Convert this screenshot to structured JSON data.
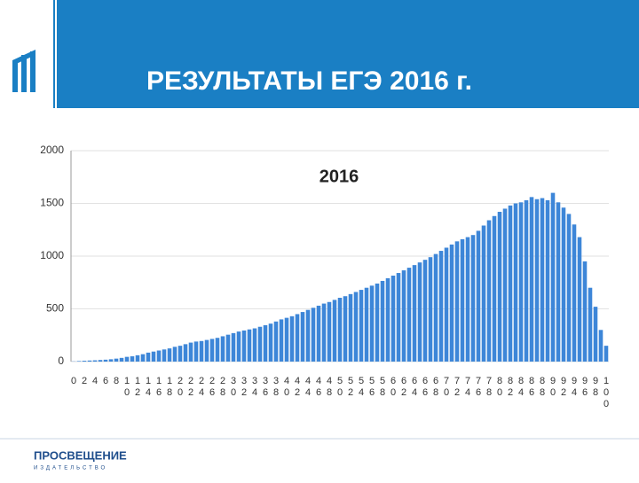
{
  "header": {
    "title": "РЕЗУЛЬТАТЫ ЕГЭ 2016 г."
  },
  "footer": {
    "brand": "ПРОСВЕЩЕНИЕ",
    "sub": "ИЗДАТЕЛЬСТВО"
  },
  "chart_data": {
    "type": "bar",
    "title": "2016",
    "categories": [
      0,
      null,
      2,
      null,
      4,
      null,
      6,
      null,
      8,
      null,
      10,
      null,
      12,
      null,
      14,
      null,
      16,
      null,
      18,
      null,
      20,
      null,
      22,
      null,
      24,
      null,
      26,
      null,
      28,
      null,
      30,
      null,
      32,
      null,
      34,
      null,
      36,
      null,
      38,
      null,
      40,
      null,
      42,
      null,
      44,
      null,
      46,
      null,
      48,
      null,
      50,
      null,
      52,
      null,
      54,
      null,
      56,
      null,
      58,
      null,
      60,
      null,
      62,
      null,
      64,
      null,
      66,
      null,
      68,
      null,
      70,
      null,
      72,
      null,
      74,
      null,
      76,
      null,
      78,
      null,
      80,
      null,
      82,
      null,
      84,
      null,
      86,
      null,
      88,
      null,
      90,
      null,
      92,
      null,
      94,
      null,
      96,
      null,
      98,
      null,
      100
    ],
    "values": [
      2,
      5,
      8,
      10,
      12,
      15,
      18,
      22,
      28,
      35,
      45,
      50,
      60,
      70,
      85,
      95,
      105,
      115,
      125,
      140,
      150,
      165,
      180,
      190,
      195,
      205,
      215,
      225,
      240,
      255,
      270,
      285,
      295,
      305,
      315,
      330,
      345,
      360,
      380,
      400,
      415,
      430,
      450,
      470,
      490,
      510,
      530,
      550,
      565,
      585,
      605,
      620,
      640,
      660,
      680,
      700,
      720,
      740,
      765,
      790,
      815,
      840,
      865,
      890,
      915,
      940,
      965,
      990,
      1020,
      1050,
      1080,
      1110,
      1140,
      1160,
      1180,
      1200,
      1240,
      1290,
      1340,
      1380,
      1420,
      1450,
      1480,
      1500,
      1510,
      1530,
      1560,
      1540,
      1550,
      1530,
      1600,
      1510,
      1460,
      1400,
      1300,
      1180,
      950,
      700,
      520,
      300,
      150
    ],
    "color": "#3d86d8",
    "ylim": [
      0,
      2000
    ],
    "yticks": [
      0,
      500,
      1000,
      1500,
      2000
    ],
    "grid": true
  }
}
